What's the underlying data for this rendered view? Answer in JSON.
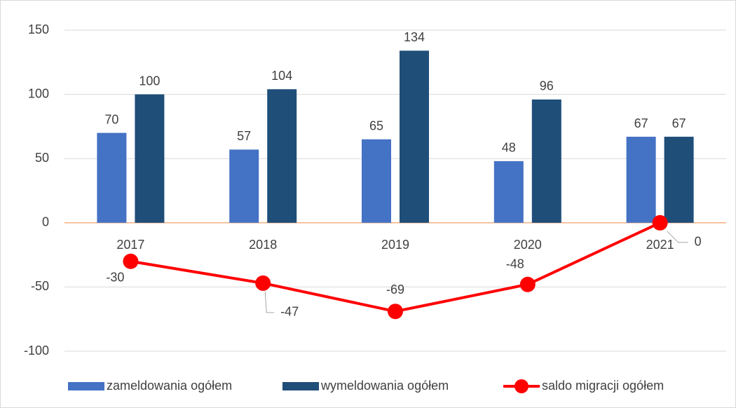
{
  "chart_data": {
    "type": "bar",
    "categories": [
      "2017",
      "2018",
      "2019",
      "2020",
      "2021"
    ],
    "series": [
      {
        "name": "zameldowania ogółem",
        "color": "#4472c4",
        "type": "bar",
        "values": [
          70,
          57,
          65,
          48,
          67
        ]
      },
      {
        "name": "wymeldowania ogółem",
        "color": "#1f4e79",
        "type": "bar",
        "values": [
          100,
          104,
          134,
          96,
          67
        ]
      },
      {
        "name": "saldo migracji ogółem",
        "color": "#ff0000",
        "type": "line",
        "values": [
          -30,
          -47,
          -69,
          -48,
          0
        ]
      }
    ],
    "ylim": [
      -100,
      150
    ],
    "yticks": [
      -100,
      -50,
      0,
      50,
      100,
      150
    ],
    "grid": true,
    "legend": "bottom"
  }
}
